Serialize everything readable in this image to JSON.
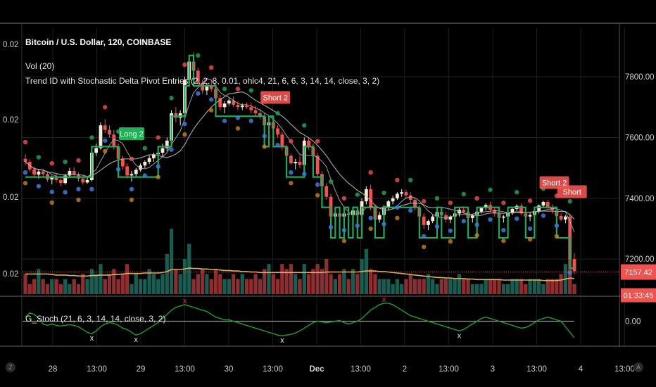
{
  "header": {
    "symbol": "Bitcoin / U.S. Dollar, 120, COINBASE",
    "vol": "Vol (20)",
    "indicator": "Trend ID with Stochastic Delta Pivot Entries (2, 2, 8, 0.01, ohlc4, 21, 6, 6, 3, 14, 14, close, 3, 2)",
    "stoch": "G_Stoch (21, 6, 3, 14, 14, close, 3, 2)"
  },
  "left_axis_labels": [
    "0.02",
    "0.02",
    "0.02",
    "0.02"
  ],
  "right_axis": {
    "ticks": [
      "7800.00",
      "7600.00",
      "7400.00",
      "7200.00"
    ],
    "values": [
      7800,
      7600,
      7400,
      7200
    ]
  },
  "stoch_axis": {
    "ticks": [
      "0.00"
    ]
  },
  "price_tag": {
    "price": "7157.42",
    "countdown": "01:33:45",
    "value": 7157.42
  },
  "x_axis": {
    "ticks": [
      "28",
      "13:00",
      "29",
      "13:00",
      "30",
      "13:00",
      "Dec",
      "13:00",
      "2",
      "13:00",
      "3",
      "13:00",
      "4",
      "13:00"
    ]
  },
  "signals": [
    {
      "label": "Long 2",
      "type": "long"
    },
    {
      "label": "Short 2",
      "type": "short"
    },
    {
      "label": "Short 2",
      "type": "short"
    },
    {
      "label": "Short",
      "type": "short"
    }
  ],
  "bottom_buttons": {
    "left": "Z",
    "right": "A"
  },
  "colors": {
    "bull": "#f4ecd6",
    "bear": "#ef5350",
    "trend": "#22a85a",
    "dots_red": "#ef5350",
    "dots_green": "#22a85a",
    "dots_blue": "#3d7bd9",
    "dots_orange": "#c87f1f",
    "ma": "#b8b8b8",
    "vol_ma": "#d7b25a",
    "stoch": "#1f9e2c"
  },
  "chart_data": {
    "type": "candlestick",
    "y_axis_range": [
      7080,
      7960
    ],
    "candles_ohlc": [
      [
        7530,
        7545,
        7510,
        7520
      ],
      [
        7520,
        7528,
        7488,
        7495
      ],
      [
        7495,
        7505,
        7470,
        7478
      ],
      [
        7478,
        7495,
        7465,
        7488
      ],
      [
        7488,
        7498,
        7470,
        7480
      ],
      [
        7480,
        7488,
        7455,
        7462
      ],
      [
        7462,
        7475,
        7446,
        7470
      ],
      [
        7470,
        7480,
        7452,
        7460
      ],
      [
        7460,
        7468,
        7440,
        7450
      ],
      [
        7450,
        7480,
        7445,
        7475
      ],
      [
        7475,
        7500,
        7468,
        7490
      ],
      [
        7490,
        7502,
        7470,
        7478
      ],
      [
        7478,
        7485,
        7455,
        7465
      ],
      [
        7465,
        7470,
        7445,
        7452
      ],
      [
        7452,
        7470,
        7448,
        7460
      ],
      [
        7460,
        7560,
        7455,
        7550
      ],
      [
        7550,
        7580,
        7540,
        7565
      ],
      [
        7565,
        7650,
        7560,
        7640
      ],
      [
        7640,
        7660,
        7615,
        7625
      ],
      [
        7625,
        7640,
        7600,
        7610
      ],
      [
        7610,
        7625,
        7560,
        7570
      ],
      [
        7570,
        7580,
        7520,
        7530
      ],
      [
        7530,
        7540,
        7495,
        7505
      ],
      [
        7505,
        7515,
        7465,
        7475
      ],
      [
        7475,
        7490,
        7455,
        7480
      ],
      [
        7480,
        7500,
        7472,
        7494
      ],
      [
        7494,
        7515,
        7488,
        7508
      ],
      [
        7508,
        7525,
        7500,
        7520
      ],
      [
        7520,
        7540,
        7512,
        7532
      ],
      [
        7532,
        7550,
        7520,
        7545
      ],
      [
        7545,
        7560,
        7530,
        7550
      ],
      [
        7550,
        7580,
        7535,
        7565
      ],
      [
        7565,
        7600,
        7555,
        7590
      ],
      [
        7590,
        7690,
        7585,
        7680
      ],
      [
        7680,
        7700,
        7650,
        7665
      ],
      [
        7665,
        7690,
        7640,
        7680
      ],
      [
        7680,
        7800,
        7670,
        7790
      ],
      [
        7790,
        7860,
        7780,
        7850
      ],
      [
        7850,
        7880,
        7810,
        7820
      ],
      [
        7820,
        7830,
        7770,
        7780
      ],
      [
        7780,
        7790,
        7745,
        7755
      ],
      [
        7755,
        7780,
        7740,
        7770
      ],
      [
        7770,
        7790,
        7750,
        7760
      ],
      [
        7760,
        7775,
        7720,
        7730
      ],
      [
        7730,
        7740,
        7690,
        7700
      ],
      [
        7700,
        7720,
        7680,
        7712
      ],
      [
        7712,
        7730,
        7705,
        7722
      ],
      [
        7722,
        7735,
        7700,
        7708
      ],
      [
        7708,
        7720,
        7690,
        7700
      ],
      [
        7700,
        7712,
        7690,
        7705
      ],
      [
        7705,
        7715,
        7695,
        7700
      ],
      [
        7700,
        7715,
        7680,
        7690
      ],
      [
        7690,
        7705,
        7670,
        7680
      ],
      [
        7680,
        7695,
        7660,
        7670
      ],
      [
        7670,
        7680,
        7630,
        7640
      ],
      [
        7640,
        7660,
        7630,
        7650
      ],
      [
        7650,
        7660,
        7620,
        7630
      ],
      [
        7630,
        7640,
        7600,
        7610
      ],
      [
        7610,
        7620,
        7560,
        7570
      ],
      [
        7570,
        7575,
        7530,
        7540
      ],
      [
        7540,
        7548,
        7510,
        7515
      ],
      [
        7515,
        7530,
        7495,
        7520
      ],
      [
        7520,
        7540,
        7500,
        7510
      ],
      [
        7510,
        7600,
        7505,
        7590
      ],
      [
        7590,
        7598,
        7560,
        7570
      ],
      [
        7570,
        7580,
        7530,
        7540
      ],
      [
        7540,
        7548,
        7470,
        7480
      ],
      [
        7480,
        7490,
        7430,
        7440
      ],
      [
        7440,
        7450,
        7395,
        7405
      ],
      [
        7405,
        7415,
        7330,
        7340
      ],
      [
        7340,
        7360,
        7325,
        7350
      ],
      [
        7350,
        7365,
        7330,
        7340
      ],
      [
        7340,
        7360,
        7320,
        7350
      ],
      [
        7350,
        7370,
        7335,
        7345
      ],
      [
        7345,
        7368,
        7340,
        7360
      ],
      [
        7360,
        7372,
        7335,
        7345
      ],
      [
        7345,
        7400,
        7330,
        7390
      ],
      [
        7390,
        7440,
        7380,
        7430
      ],
      [
        7430,
        7445,
        7360,
        7370
      ],
      [
        7370,
        7380,
        7320,
        7330
      ],
      [
        7330,
        7355,
        7320,
        7345
      ],
      [
        7345,
        7378,
        7340,
        7370
      ],
      [
        7370,
        7395,
        7360,
        7390
      ],
      [
        7390,
        7408,
        7380,
        7400
      ],
      [
        7400,
        7420,
        7395,
        7415
      ],
      [
        7415,
        7430,
        7405,
        7420
      ],
      [
        7420,
        7428,
        7400,
        7410
      ],
      [
        7410,
        7420,
        7385,
        7395
      ],
      [
        7395,
        7402,
        7360,
        7370
      ],
      [
        7370,
        7378,
        7330,
        7340
      ],
      [
        7340,
        7350,
        7300,
        7312
      ],
      [
        7312,
        7330,
        7295,
        7325
      ],
      [
        7325,
        7345,
        7318,
        7340
      ],
      [
        7340,
        7360,
        7332,
        7355
      ],
      [
        7355,
        7370,
        7340,
        7345
      ],
      [
        7345,
        7356,
        7320,
        7330
      ],
      [
        7330,
        7345,
        7318,
        7340
      ],
      [
        7340,
        7356,
        7330,
        7350
      ],
      [
        7350,
        7368,
        7340,
        7362
      ],
      [
        7362,
        7374,
        7350,
        7355
      ],
      [
        7355,
        7362,
        7330,
        7335
      ],
      [
        7335,
        7348,
        7320,
        7345
      ],
      [
        7345,
        7360,
        7338,
        7356
      ],
      [
        7356,
        7372,
        7350,
        7368
      ],
      [
        7368,
        7384,
        7360,
        7378
      ],
      [
        7378,
        7388,
        7355,
        7362
      ],
      [
        7362,
        7370,
        7340,
        7350
      ],
      [
        7350,
        7358,
        7330,
        7336
      ],
      [
        7336,
        7345,
        7320,
        7340
      ],
      [
        7340,
        7355,
        7332,
        7352
      ],
      [
        7352,
        7370,
        7345,
        7365
      ],
      [
        7365,
        7380,
        7358,
        7375
      ],
      [
        7375,
        7382,
        7345,
        7350
      ],
      [
        7350,
        7360,
        7330,
        7340
      ],
      [
        7340,
        7352,
        7325,
        7345
      ],
      [
        7345,
        7362,
        7338,
        7358
      ],
      [
        7358,
        7380,
        7350,
        7376
      ],
      [
        7376,
        7392,
        7368,
        7388
      ],
      [
        7388,
        7395,
        7365,
        7370
      ],
      [
        7370,
        7380,
        7350,
        7360
      ],
      [
        7360,
        7368,
        7335,
        7342
      ],
      [
        7342,
        7350,
        7325,
        7330
      ],
      [
        7330,
        7345,
        7318,
        7340
      ],
      [
        7340,
        7350,
        7180,
        7200
      ],
      [
        7200,
        7220,
        7150,
        7160
      ]
    ],
    "volume": [
      4,
      2,
      3,
      5,
      3,
      2,
      3,
      3,
      2,
      3,
      2,
      3,
      2,
      4,
      3,
      5,
      4,
      6,
      3,
      4,
      5,
      3,
      4,
      6,
      2,
      4,
      3,
      3,
      5,
      4,
      3,
      4,
      8,
      13,
      5,
      4,
      7,
      10,
      3,
      4,
      5,
      4,
      3,
      5,
      4,
      3,
      3,
      4,
      3,
      4,
      3,
      3,
      4,
      3,
      5,
      6,
      4,
      3,
      6,
      5,
      6,
      4,
      3,
      6,
      4,
      5,
      6,
      5,
      7,
      4,
      3,
      4,
      5,
      3,
      5,
      4,
      7,
      9,
      5,
      4,
      3,
      3,
      3,
      2,
      3,
      2,
      3,
      4,
      3,
      3,
      3,
      4,
      3,
      2,
      3,
      3,
      3,
      3,
      4,
      3,
      3,
      2,
      2,
      2,
      3,
      3,
      3,
      3,
      2,
      2,
      3,
      3,
      3,
      2,
      3,
      3,
      3,
      2,
      3,
      3,
      3,
      4,
      6,
      7,
      2
    ],
    "volume_ma": [
      4,
      4,
      4,
      4,
      4,
      4,
      3.9,
      3.8,
      3.8,
      3.8,
      3.7,
      3.7,
      3.6,
      3.6,
      3.6,
      3.7,
      3.7,
      3.8,
      3.8,
      3.8,
      3.9,
      3.9,
      4.0,
      4.1,
      4.1,
      4.1,
      4.1,
      4.2,
      4.2,
      4.2,
      4.2,
      4.3,
      4.5,
      4.9,
      4.9,
      4.9,
      5.0,
      5.2,
      5.1,
      5.1,
      5.0,
      5.0,
      4.9,
      4.9,
      4.8,
      4.7,
      4.7,
      4.6,
      4.6,
      4.5,
      4.5,
      4.4,
      4.4,
      4.3,
      4.3,
      4.3,
      4.3,
      4.3,
      4.3,
      4.3,
      4.3,
      4.3,
      4.3,
      4.3,
      4.3,
      4.3,
      4.3,
      4.3,
      4.4,
      4.4,
      4.4,
      4.4,
      4.4,
      4.4,
      4.4,
      4.4,
      4.5,
      4.6,
      4.6,
      4.6,
      4.5,
      4.5,
      4.4,
      4.3,
      4.2,
      4.1,
      4.0,
      3.9,
      3.8,
      3.7,
      3.6,
      3.5,
      3.4,
      3.3,
      3.3,
      3.2,
      3.2,
      3.1,
      3.1,
      3.1,
      3.0,
      3.0,
      2.9,
      2.9,
      2.9,
      2.9,
      2.9,
      2.9,
      2.8,
      2.8,
      2.8,
      2.8,
      2.8,
      2.8,
      2.8,
      2.8,
      2.8,
      2.7,
      2.7,
      2.7,
      2.7,
      2.8,
      3.0,
      3.2,
      3.1
    ],
    "stoch": [
      0.3,
      0.6,
      0.5,
      0.2,
      -0.2,
      -0.3,
      -0.2,
      -0.3,
      -0.35,
      -0.3,
      -0.25,
      -0.3,
      -0.4,
      -0.6,
      -0.8,
      -0.9,
      -0.7,
      -0.4,
      -0.2,
      -0.1,
      -0.15,
      -0.3,
      -0.5,
      -0.6,
      -0.8,
      -1.0,
      -0.9,
      -0.7,
      -0.5,
      -0.3,
      -0.1,
      0.2,
      0.5,
      0.8,
      1.0,
      1.1,
      1.2,
      1.1,
      1.0,
      0.9,
      0.8,
      0.7,
      0.5,
      0.3,
      0.2,
      0.1,
      0.1,
      0.0,
      -0.1,
      -0.2,
      -0.3,
      -0.4,
      -0.5,
      -0.6,
      -0.7,
      -0.8,
      -0.9,
      -1.0,
      -1.05,
      -1.0,
      -0.95,
      -0.85,
      -0.7,
      -0.5,
      -0.3,
      -0.1,
      0.0,
      -0.05,
      -0.1,
      -0.05,
      0.0,
      0.05,
      -0.1,
      -0.2,
      -0.1,
      0.0,
      0.2,
      0.5,
      0.8,
      1.0,
      1.2,
      1.3,
      1.3,
      1.2,
      1.0,
      0.8,
      0.6,
      0.4,
      0.3,
      0.2,
      0.1,
      0.0,
      -0.1,
      -0.2,
      -0.3,
      -0.4,
      -0.5,
      -0.6,
      -0.7,
      -0.6,
      -0.4,
      -0.2,
      0.0,
      0.2,
      0.3,
      0.2,
      0.1,
      0.0,
      -0.1,
      -0.2,
      -0.3,
      -0.4,
      -0.5,
      -0.45,
      -0.3,
      -0.1,
      0.1,
      0.2,
      0.3,
      0.2,
      0.1,
      0.0,
      -0.4,
      -0.8,
      -1.2
    ],
    "stoch_range": [
      -1.6,
      1.6
    ]
  }
}
